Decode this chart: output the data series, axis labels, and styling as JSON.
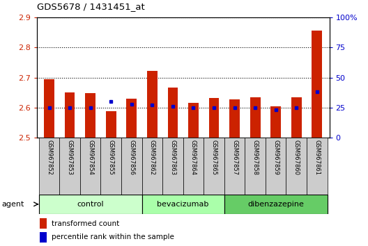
{
  "title": "GDS5678 / 1431451_at",
  "samples": [
    "GSM967852",
    "GSM967853",
    "GSM967854",
    "GSM967855",
    "GSM967856",
    "GSM967862",
    "GSM967863",
    "GSM967864",
    "GSM967865",
    "GSM967857",
    "GSM967858",
    "GSM967859",
    "GSM967860",
    "GSM967861"
  ],
  "red_values": [
    2.695,
    2.651,
    2.649,
    2.588,
    2.629,
    2.722,
    2.667,
    2.615,
    2.632,
    2.628,
    2.634,
    2.605,
    2.634,
    2.855
  ],
  "blue_values": [
    25,
    25,
    25,
    30,
    28,
    27,
    26,
    25,
    25,
    25,
    25,
    23,
    25,
    38
  ],
  "ylim_left": [
    2.5,
    2.9
  ],
  "ylim_right": [
    0,
    100
  ],
  "yticks_left": [
    2.5,
    2.6,
    2.7,
    2.8,
    2.9
  ],
  "yticks_right": [
    0,
    25,
    50,
    75,
    100
  ],
  "ytick_labels_right": [
    "0",
    "25",
    "50",
    "75",
    "100%"
  ],
  "groups": [
    {
      "label": "control",
      "start": 0,
      "end": 5,
      "color": "#ccffcc"
    },
    {
      "label": "bevacizumab",
      "start": 5,
      "end": 9,
      "color": "#aaffaa"
    },
    {
      "label": "dibenzazepine",
      "start": 9,
      "end": 14,
      "color": "#66cc66"
    }
  ],
  "agent_label": "agent",
  "bar_color": "#cc2200",
  "dot_color": "#0000cc",
  "bar_width": 0.5,
  "baseline": 2.5,
  "legend_red": "transformed count",
  "legend_blue": "percentile rank within the sample",
  "grid_color": "#000000",
  "tick_color_left": "#cc2200",
  "tick_color_right": "#0000cc",
  "sample_box_color": "#cccccc",
  "fig_bg": "#ffffff"
}
